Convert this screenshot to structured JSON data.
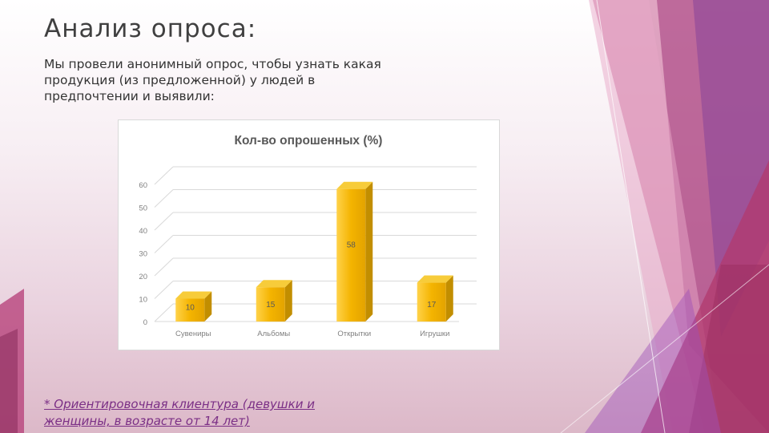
{
  "slide": {
    "title": "Анализ опроса:",
    "intro": "Мы провели анонимный опрос, чтобы узнать какая продукция (из предложенной) у людей в предпочтении и выявили:",
    "footnote": "* Ориентировочная клиентура (девушки и женщины, в возрасте от 14 лет)"
  },
  "colors": {
    "bar_front": "#f4b400",
    "bar_top": "#f7cc3a",
    "bar_side": "#c28e00",
    "accent_magenta": "#b0306a",
    "accent_purple": "#7a3b9c"
  },
  "chart_data": {
    "type": "bar",
    "title": "Кол-во опрошенных (%)",
    "categories": [
      "Сувениры",
      "Альбомы",
      "Открытки",
      "Игрушки"
    ],
    "values": [
      10,
      15,
      58,
      17
    ],
    "data_labels": [
      "10",
      "15",
      "58",
      "17"
    ],
    "ylim": [
      0,
      60
    ],
    "yticks": [
      "0",
      "10",
      "20",
      "30",
      "40",
      "50",
      "60"
    ],
    "grid": true,
    "legend": "none",
    "style": "3d"
  }
}
